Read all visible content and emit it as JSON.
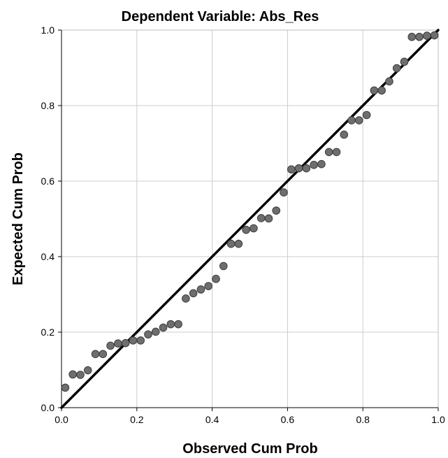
{
  "chart_data": {
    "type": "scatter",
    "title": "Dependent Variable: Abs_Res",
    "xlabel": "Observed Cum Prob",
    "ylabel": "Expected Cum Prob",
    "xlim": [
      0.0,
      1.0
    ],
    "ylim": [
      0.0,
      1.0
    ],
    "x_ticks": [
      "0.0",
      "0.2",
      "0.4",
      "0.6",
      "0.8",
      "1.0"
    ],
    "y_ticks": [
      "0.0",
      "0.2",
      "0.4",
      "0.6",
      "0.8",
      "1.0"
    ],
    "grid": true,
    "reference_line": {
      "from": [
        0,
        0
      ],
      "to": [
        1,
        1
      ]
    },
    "colors": {
      "point_fill": "#6e6e6e",
      "point_stroke": "#3c3c3c",
      "line": "#000000",
      "grid": "#cccccc",
      "axis": "#000000"
    },
    "points": [
      [
        0.01,
        0.053
      ],
      [
        0.03,
        0.088
      ],
      [
        0.05,
        0.087
      ],
      [
        0.07,
        0.099
      ],
      [
        0.09,
        0.142
      ],
      [
        0.11,
        0.142
      ],
      [
        0.13,
        0.164
      ],
      [
        0.15,
        0.17
      ],
      [
        0.17,
        0.171
      ],
      [
        0.19,
        0.178
      ],
      [
        0.21,
        0.178
      ],
      [
        0.23,
        0.194
      ],
      [
        0.25,
        0.201
      ],
      [
        0.27,
        0.212
      ],
      [
        0.29,
        0.221
      ],
      [
        0.31,
        0.221
      ],
      [
        0.33,
        0.289
      ],
      [
        0.35,
        0.303
      ],
      [
        0.37,
        0.313
      ],
      [
        0.39,
        0.322
      ],
      [
        0.41,
        0.341
      ],
      [
        0.43,
        0.375
      ],
      [
        0.45,
        0.434
      ],
      [
        0.47,
        0.434
      ],
      [
        0.49,
        0.471
      ],
      [
        0.51,
        0.475
      ],
      [
        0.53,
        0.502
      ],
      [
        0.55,
        0.501
      ],
      [
        0.57,
        0.522
      ],
      [
        0.59,
        0.57
      ],
      [
        0.61,
        0.631
      ],
      [
        0.63,
        0.634
      ],
      [
        0.65,
        0.634
      ],
      [
        0.67,
        0.643
      ],
      [
        0.69,
        0.645
      ],
      [
        0.71,
        0.677
      ],
      [
        0.73,
        0.677
      ],
      [
        0.75,
        0.723
      ],
      [
        0.77,
        0.761
      ],
      [
        0.79,
        0.761
      ],
      [
        0.81,
        0.775
      ],
      [
        0.83,
        0.84
      ],
      [
        0.85,
        0.84
      ],
      [
        0.87,
        0.864
      ],
      [
        0.89,
        0.899
      ],
      [
        0.91,
        0.916
      ],
      [
        0.93,
        0.982
      ],
      [
        0.95,
        0.982
      ],
      [
        0.97,
        0.985
      ],
      [
        0.99,
        0.986
      ]
    ]
  }
}
